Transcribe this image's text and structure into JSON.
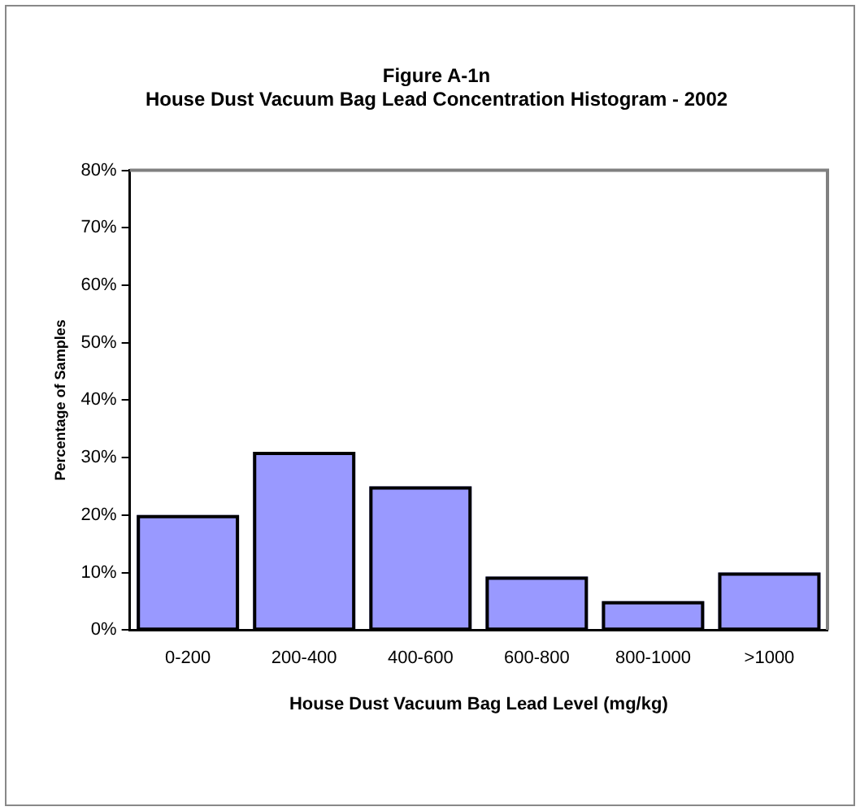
{
  "chart_data": {
    "type": "bar",
    "title": "Figure A-1n",
    "subtitle": "House Dust Vacuum Bag Lead Concentration Histogram - 2002",
    "xlabel": "House Dust Vacuum Bag Lead Level (mg/kg)",
    "ylabel": "Percentage of Samples",
    "categories": [
      "0-200",
      "200-400",
      "400-600",
      "600-800",
      "800-1000",
      ">1000"
    ],
    "values": [
      20,
      31,
      25,
      9.3,
      5,
      10
    ],
    "color": "#9999ff",
    "ylim": [
      0,
      80
    ],
    "yticks": [
      {
        "value": 0,
        "label": "0%"
      },
      {
        "value": 10,
        "label": "10%"
      },
      {
        "value": 20,
        "label": "20%"
      },
      {
        "value": 30,
        "label": "30%"
      },
      {
        "value": 40,
        "label": "40%"
      },
      {
        "value": 50,
        "label": "50%"
      },
      {
        "value": 60,
        "label": "60%"
      },
      {
        "value": 70,
        "label": "70%"
      },
      {
        "value": 80,
        "label": "80%"
      }
    ],
    "grid": false,
    "legend": false
  }
}
